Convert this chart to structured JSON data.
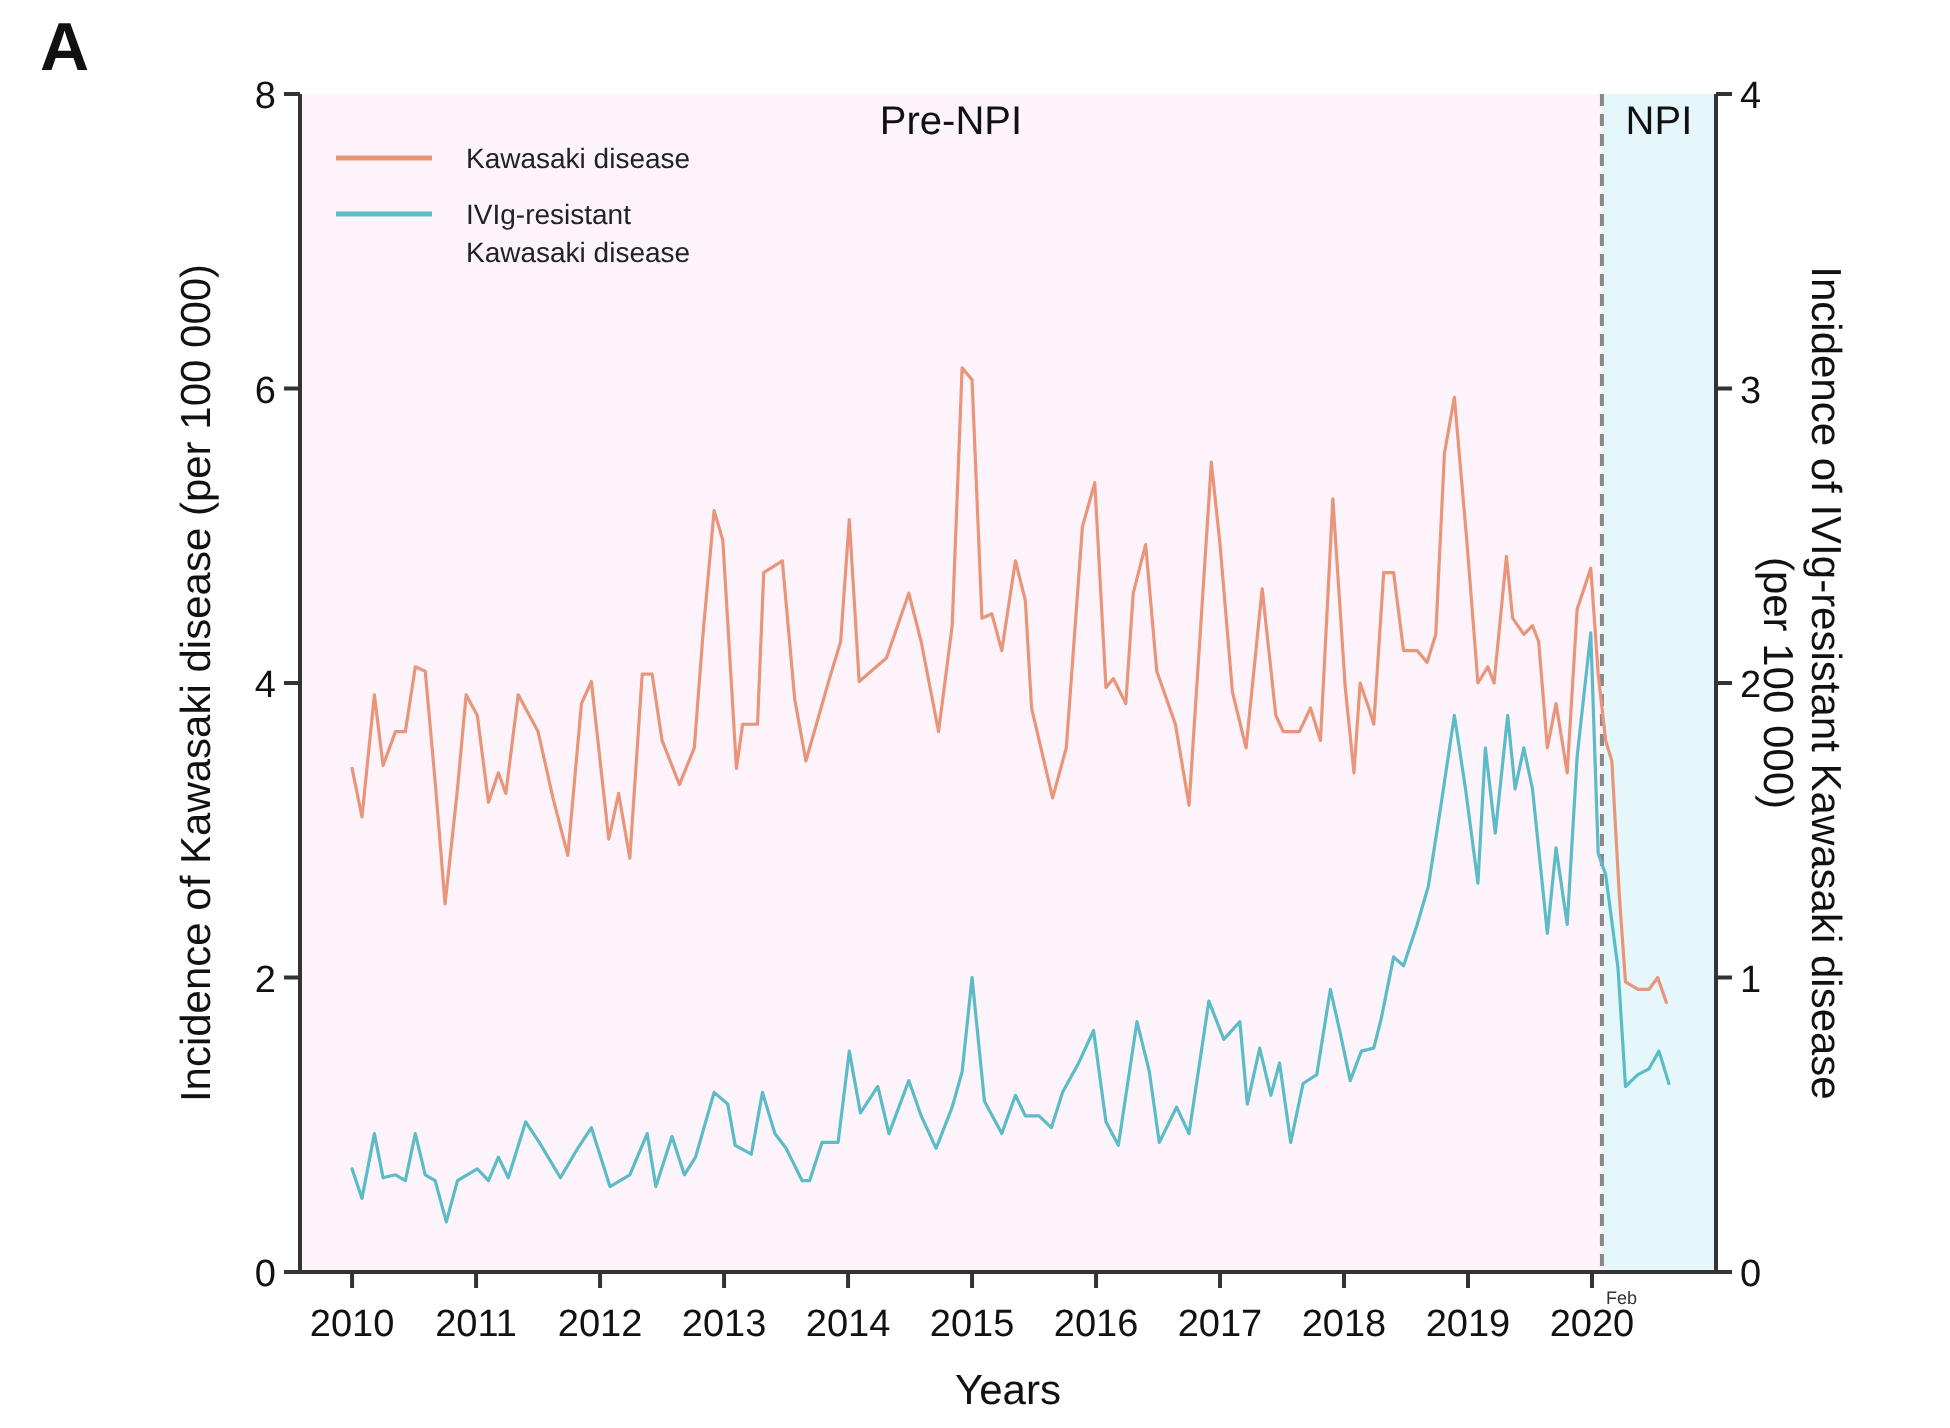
{
  "chart_data": {
    "type": "line",
    "title": "A",
    "xlabel": "Years",
    "ylabel": "Incidence of Kawasaki disease (per 100 000)",
    "y2label": "Incidence of IVIg-resistant  Kawasaki disease\n(per 100 000)",
    "xlim": [
      2009.58,
      2021
    ],
    "xticks": [
      2010,
      2011,
      2012,
      2013,
      2014,
      2015,
      2016,
      2017,
      2018,
      2019,
      2020
    ],
    "ylim": [
      0,
      8
    ],
    "yticks": [
      0,
      2,
      4,
      6,
      8
    ],
    "y2lim": [
      0,
      4
    ],
    "y2ticks": [
      0,
      1,
      2,
      3,
      4
    ],
    "grid": false,
    "legend": "top left",
    "marker": "none",
    "line_style": "solid",
    "bands": [
      {
        "axis": "x",
        "from": 2009.58,
        "to": 2020.08,
        "label": "Pre-NPI",
        "color": "#fdf3fa"
      },
      {
        "axis": "x",
        "from": 2020.08,
        "to": 2021,
        "label": "NPI",
        "color": "#e6f7fb"
      }
    ],
    "ref_lines": [
      {
        "axis": "x",
        "value": 2020.08,
        "label": "Feb",
        "color": "#888888",
        "line_style": "dashed"
      }
    ],
    "series": [
      {
        "name": "Kawasaki disease",
        "color": "#e8957a",
        "x": [
          2010,
          2010.08,
          2010.18,
          2010.25,
          2010.35,
          2010.43,
          2010.51,
          2010.59,
          2010.67,
          2010.75,
          2010.85,
          2010.92,
          2011.01,
          2011.1,
          2011.18,
          2011.24,
          2011.34,
          2011.5,
          2011.62,
          2011.74,
          2011.85,
          2011.93,
          2012.07,
          2012.15,
          2012.24,
          2012.34,
          2012.42,
          2012.5,
          2012.64,
          2012.76,
          2012.83,
          2012.92,
          2012.99,
          2013.1,
          2013.15,
          2013.27,
          2013.32,
          2013.47,
          2013.57,
          2013.66,
          2013.85,
          2013.94,
          2014.01,
          2014.09,
          2014.31,
          2014.49,
          2014.59,
          2014.73,
          2014.84,
          2014.92,
          2015,
          2015.08,
          2015.16,
          2015.24,
          2015.35,
          2015.43,
          2015.48,
          2015.65,
          2015.76,
          2015.89,
          2015.99,
          2016.08,
          2016.14,
          2016.24,
          2016.3,
          2016.4,
          2016.49,
          2016.64,
          2016.75,
          2016.84,
          2016.93,
          2017,
          2017.1,
          2017.21,
          2017.34,
          2017.45,
          2017.51,
          2017.64,
          2017.73,
          2017.81,
          2017.91,
          2018.01,
          2018.08,
          2018.13,
          2018.2,
          2018.24,
          2018.32,
          2018.4,
          2018.48,
          2018.59,
          2018.67,
          2018.74,
          2018.81,
          2018.89,
          2018.99,
          2019.08,
          2019.16,
          2019.21,
          2019.31,
          2019.36,
          2019.45,
          2019.52,
          2019.57,
          2019.64,
          2019.71,
          2019.8,
          2019.88,
          2019.99,
          2020.05,
          2020.11,
          2020.16,
          2020.22,
          2020.27,
          2020.37,
          2020.46,
          2020.53,
          2020.6
        ],
        "values": [
          3.42,
          3.09,
          3.92,
          3.44,
          3.67,
          3.67,
          4.11,
          4.08,
          3.33,
          2.5,
          3.28,
          3.92,
          3.78,
          3.19,
          3.39,
          3.25,
          3.92,
          3.67,
          3.22,
          2.83,
          3.86,
          4.01,
          2.94,
          3.25,
          2.81,
          4.06,
          4.06,
          3.61,
          3.31,
          3.56,
          4.33,
          5.17,
          4.97,
          3.42,
          3.72,
          3.72,
          4.75,
          4.83,
          3.89,
          3.47,
          4.03,
          4.28,
          5.11,
          4.01,
          4.17,
          4.61,
          4.28,
          3.67,
          4.39,
          6.14,
          6.06,
          4.44,
          4.47,
          4.22,
          4.83,
          4.56,
          3.83,
          3.22,
          3.56,
          5.06,
          5.36,
          3.97,
          4.03,
          3.86,
          4.61,
          4.94,
          4.08,
          3.72,
          3.17,
          4.33,
          5.5,
          4.94,
          3.94,
          3.56,
          4.64,
          3.78,
          3.67,
          3.67,
          3.83,
          3.61,
          5.25,
          3.97,
          3.39,
          4,
          3.83,
          3.72,
          4.75,
          4.75,
          4.22,
          4.22,
          4.14,
          4.33,
          5.56,
          5.94,
          4.97,
          4,
          4.11,
          4,
          4.86,
          4.44,
          4.33,
          4.39,
          4.28,
          3.56,
          3.86,
          3.39,
          4.5,
          4.78,
          4.06,
          3.61,
          3.47,
          2.56,
          1.97,
          1.92,
          1.92,
          2,
          1.83
        ]
      },
      {
        "name": "IVIg-resistant Kawasaki disease",
        "color": "#5bbcc8",
        "axis": "y2",
        "x": [
          2010,
          2010.08,
          2010.18,
          2010.25,
          2010.35,
          2010.43,
          2010.51,
          2010.59,
          2010.67,
          2010.76,
          2010.85,
          2011.01,
          2011.1,
          2011.18,
          2011.26,
          2011.4,
          2011.51,
          2011.68,
          2011.82,
          2011.93,
          2012.08,
          2012.24,
          2012.38,
          2012.45,
          2012.58,
          2012.68,
          2012.77,
          2012.92,
          2013.03,
          2013.09,
          2013.22,
          2013.31,
          2013.41,
          2013.5,
          2013.63,
          2013.69,
          2013.79,
          2013.92,
          2014.01,
          2014.1,
          2014.24,
          2014.33,
          2014.49,
          2014.59,
          2014.71,
          2014.84,
          2014.92,
          2015,
          2015.1,
          2015.24,
          2015.35,
          2015.43,
          2015.54,
          2015.64,
          2015.73,
          2015.86,
          2015.98,
          2016.08,
          2016.18,
          2016.33,
          2016.43,
          2016.51,
          2016.65,
          2016.75,
          2016.91,
          2017.03,
          2017.16,
          2017.22,
          2017.32,
          2017.41,
          2017.48,
          2017.57,
          2017.67,
          2017.78,
          2017.89,
          2017.97,
          2018.05,
          2018.14,
          2018.24,
          2018.3,
          2018.4,
          2018.48,
          2018.59,
          2018.68,
          2018.78,
          2018.89,
          2018.98,
          2019.08,
          2019.14,
          2019.22,
          2019.32,
          2019.38,
          2019.45,
          2019.52,
          2019.64,
          2019.71,
          2019.8,
          2019.88,
          2019.99,
          2020.05,
          2020.11,
          2020.21,
          2020.27,
          2020.37,
          2020.46,
          2020.54,
          2020.62
        ],
        "values": [
          0.35,
          0.25,
          0.47,
          0.32,
          0.33,
          0.31,
          0.47,
          0.33,
          0.31,
          0.17,
          0.31,
          0.35,
          0.31,
          0.39,
          0.32,
          0.51,
          0.44,
          0.32,
          0.42,
          0.49,
          0.29,
          0.33,
          0.47,
          0.29,
          0.46,
          0.33,
          0.39,
          0.61,
          0.57,
          0.43,
          0.4,
          0.61,
          0.47,
          0.42,
          0.31,
          0.31,
          0.44,
          0.44,
          0.75,
          0.54,
          0.63,
          0.47,
          0.65,
          0.53,
          0.42,
          0.56,
          0.68,
          1,
          0.58,
          0.47,
          0.6,
          0.53,
          0.53,
          0.49,
          0.61,
          0.71,
          0.82,
          0.51,
          0.43,
          0.85,
          0.68,
          0.44,
          0.56,
          0.47,
          0.92,
          0.79,
          0.85,
          0.57,
          0.76,
          0.6,
          0.71,
          0.44,
          0.64,
          0.67,
          0.96,
          0.81,
          0.65,
          0.75,
          0.76,
          0.86,
          1.07,
          1.04,
          1.18,
          1.31,
          1.58,
          1.89,
          1.64,
          1.32,
          1.78,
          1.49,
          1.89,
          1.64,
          1.78,
          1.64,
          1.15,
          1.44,
          1.18,
          1.75,
          2.17,
          1.42,
          1.35,
          1.03,
          0.63,
          0.67,
          0.69,
          0.75,
          0.64
        ]
      }
    ]
  }
}
